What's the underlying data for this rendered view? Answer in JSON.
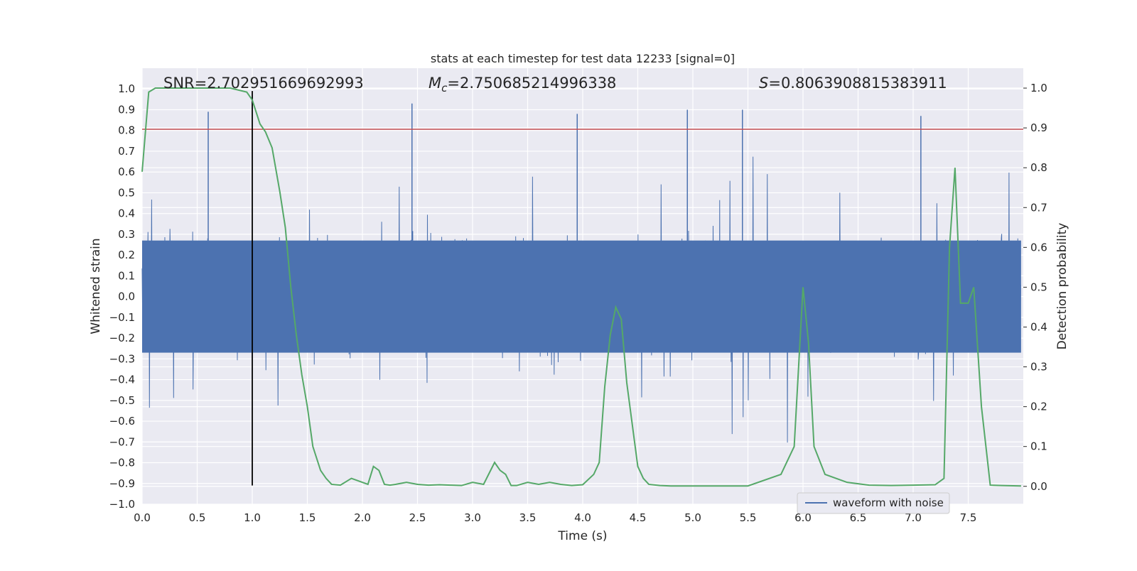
{
  "chart_data": {
    "type": "line",
    "title": "stats at each timestep for test data 12233 [signal=0]",
    "xlabel": "Time (s)",
    "ylabel_left": "Whitened strain",
    "ylabel_right": "Detection probability",
    "xlim": [
      0.0,
      8.0
    ],
    "ylim_left": [
      -1.0,
      1.1
    ],
    "ylim_right": [
      -0.045,
      1.05
    ],
    "x_ticks": [
      "0.0",
      "0.5",
      "1.0",
      "1.5",
      "2.0",
      "2.5",
      "3.0",
      "3.5",
      "4.0",
      "4.5",
      "5.0",
      "5.5",
      "6.0",
      "6.5",
      "7.0",
      "7.5"
    ],
    "y_left_ticks": [
      "1.0",
      "0.9",
      "0.8",
      "0.7",
      "0.6",
      "0.5",
      "0.4",
      "0.3",
      "0.2",
      "0.1",
      "0.0",
      "−0.1",
      "−0.2",
      "−0.3",
      "−0.4",
      "−0.5",
      "−0.6",
      "−0.7",
      "−0.8",
      "−0.9",
      "−1.0"
    ],
    "y_right_ticks": [
      "1.0",
      "0.9",
      "0.8",
      "0.7",
      "0.6",
      "0.5",
      "0.4",
      "0.3",
      "0.2",
      "0.1",
      "0.0"
    ],
    "annotations": {
      "snr": "SNR=2.702951669692993",
      "mc_symbol": "M",
      "mc_sub": "c",
      "mc_value": "=2.750685214996338",
      "s_symbol": "S",
      "s_value": "=0.8063908815383911"
    },
    "threshold": {
      "value": 0.806,
      "color": "#c44e52"
    },
    "marker_line": {
      "x": 1.0,
      "y_range": [
        -0.91,
        0.99
      ],
      "color": "#000000"
    },
    "grid": true,
    "legend": {
      "position": "lower-right",
      "entries": [
        "waveform with noise"
      ]
    },
    "series": [
      {
        "name": "waveform with noise",
        "axis": "left",
        "color": "#4c72b0",
        "description_values": {
          "amplitude_core": 0.27,
          "peaks": [
            0.89,
            0.93,
            0.88,
            0.9,
            0.9,
            0.87
          ]
        }
      },
      {
        "axis": "right",
        "color": "#55a868",
        "x": [
          0.0,
          0.06,
          0.12,
          0.2,
          0.4,
          0.6,
          0.8,
          0.95,
          1.0,
          1.07,
          1.12,
          1.18,
          1.25,
          1.3,
          1.35,
          1.4,
          1.45,
          1.5,
          1.55,
          1.62,
          1.67,
          1.72,
          1.8,
          1.9,
          2.0,
          2.05,
          2.1,
          2.15,
          2.2,
          2.25,
          2.3,
          2.4,
          2.5,
          2.6,
          2.7,
          2.8,
          2.9,
          3.0,
          3.1,
          3.2,
          3.25,
          3.3,
          3.35,
          3.4,
          3.5,
          3.6,
          3.7,
          3.8,
          3.9,
          4.0,
          4.1,
          4.15,
          4.2,
          4.25,
          4.3,
          4.35,
          4.4,
          4.5,
          4.55,
          4.6,
          4.7,
          4.8,
          5.0,
          5.5,
          5.8,
          5.92,
          6.0,
          6.05,
          6.1,
          6.2,
          6.4,
          6.6,
          6.8,
          7.0,
          7.2,
          7.28,
          7.33,
          7.38,
          7.43,
          7.5,
          7.55,
          7.62,
          7.7,
          7.8,
          7.98
        ],
        "values": [
          0.79,
          0.99,
          1.0,
          1.0,
          1.0,
          1.0,
          1.0,
          0.99,
          0.97,
          0.91,
          0.89,
          0.85,
          0.74,
          0.65,
          0.5,
          0.38,
          0.28,
          0.2,
          0.1,
          0.04,
          0.02,
          0.005,
          0.003,
          0.02,
          0.01,
          0.005,
          0.05,
          0.04,
          0.005,
          0.003,
          0.005,
          0.01,
          0.005,
          0.003,
          0.004,
          0.003,
          0.002,
          0.01,
          0.005,
          0.06,
          0.04,
          0.03,
          0.002,
          0.002,
          0.01,
          0.005,
          0.01,
          0.005,
          0.002,
          0.004,
          0.03,
          0.06,
          0.25,
          0.38,
          0.45,
          0.42,
          0.26,
          0.05,
          0.02,
          0.005,
          0.002,
          0.001,
          0.001,
          0.001,
          0.03,
          0.1,
          0.5,
          0.36,
          0.1,
          0.03,
          0.01,
          0.003,
          0.002,
          0.003,
          0.004,
          0.02,
          0.6,
          0.8,
          0.46,
          0.46,
          0.5,
          0.2,
          0.003,
          0.002,
          0.001
        ]
      }
    ]
  }
}
